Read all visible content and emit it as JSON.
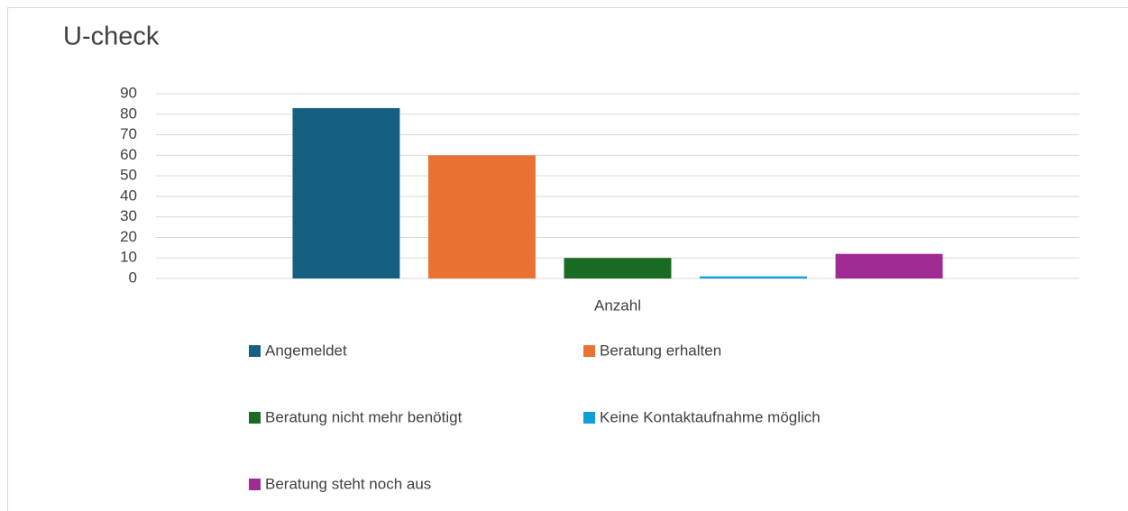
{
  "chart_data": {
    "type": "bar",
    "title": "U-check",
    "categories": [
      "Anzahl"
    ],
    "series": [
      {
        "name": "Angemeldet",
        "color": "#156082",
        "values": [
          83
        ]
      },
      {
        "name": "Beratung erhalten",
        "color": "#e97132",
        "values": [
          60
        ]
      },
      {
        "name": "Beratung nicht mehr benötigt",
        "color": "#196b24",
        "values": [
          10
        ]
      },
      {
        "name": "Keine Kontaktaufnahme möglich",
        "color": "#0f9ed5",
        "values": [
          1
        ]
      },
      {
        "name": "Beratung steht noch aus",
        "color": "#a02b93",
        "values": [
          12
        ]
      }
    ],
    "ylim": [
      0,
      90
    ],
    "yticks": [
      0,
      10,
      20,
      30,
      40,
      50,
      60,
      70,
      80,
      90
    ],
    "grid": true,
    "legend": "bottom"
  }
}
